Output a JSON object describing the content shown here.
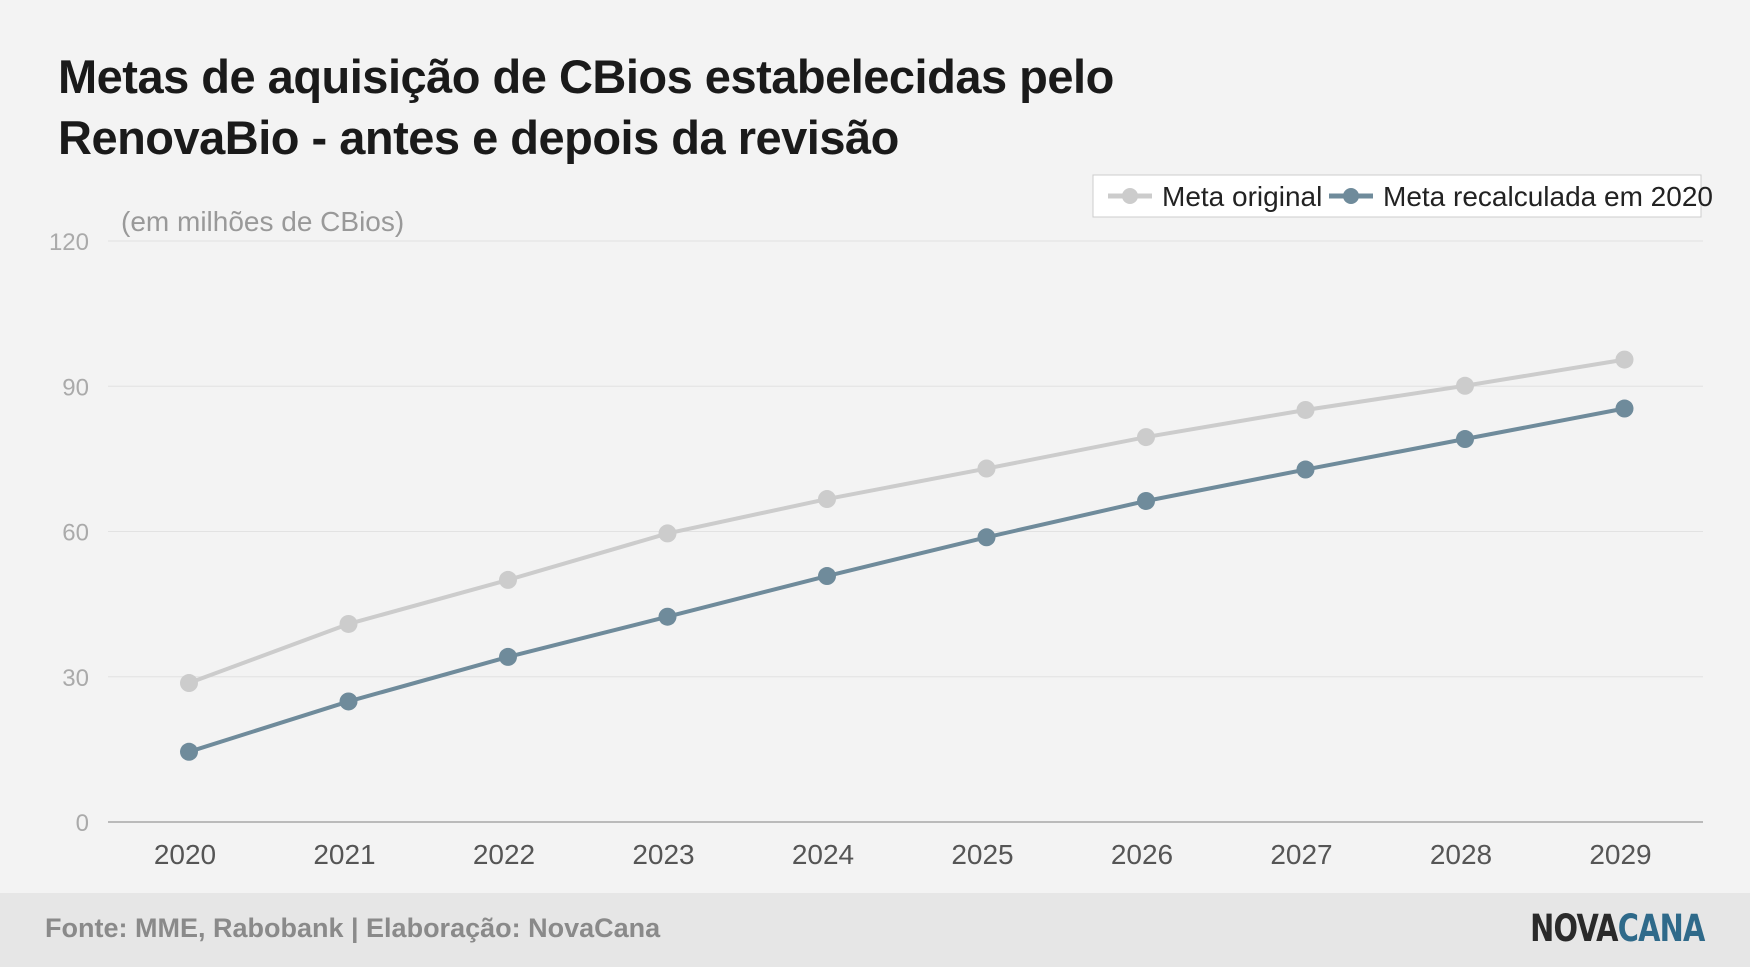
{
  "title_lines": [
    "Metas de aquisição de CBios estabelecidas pelo",
    "RenovaBio - antes e depois da revisão"
  ],
  "source": "Fonte: MME, Rabobank | Elaboração: NovaCana",
  "logo": {
    "part1": "NOVA",
    "part2": "CANA"
  },
  "chart_data": {
    "type": "line",
    "title": "Metas de aquisição de CBios estabelecidas pelo RenovaBio - antes e depois da revisão",
    "ylabel": "(em milhões de CBios)",
    "xlabel": "",
    "categories": [
      "2020",
      "2021",
      "2022",
      "2023",
      "2024",
      "2025",
      "2026",
      "2027",
      "2028",
      "2029"
    ],
    "yticks": [
      0,
      30,
      60,
      90,
      120
    ],
    "ylim": [
      0,
      120
    ],
    "grid": true,
    "legend_position": "top-right",
    "series": [
      {
        "name": "Meta original",
        "color": "#cccccc",
        "values": [
          28.7,
          40.9,
          50.0,
          59.6,
          66.7,
          73.0,
          79.5,
          85.1,
          90.1,
          95.5
        ]
      },
      {
        "name": "Meta recalculada em 2020",
        "color": "#6f8b9b",
        "values": [
          14.5,
          24.9,
          34.1,
          42.4,
          50.8,
          58.8,
          66.3,
          72.8,
          79.1,
          85.4
        ]
      }
    ]
  }
}
